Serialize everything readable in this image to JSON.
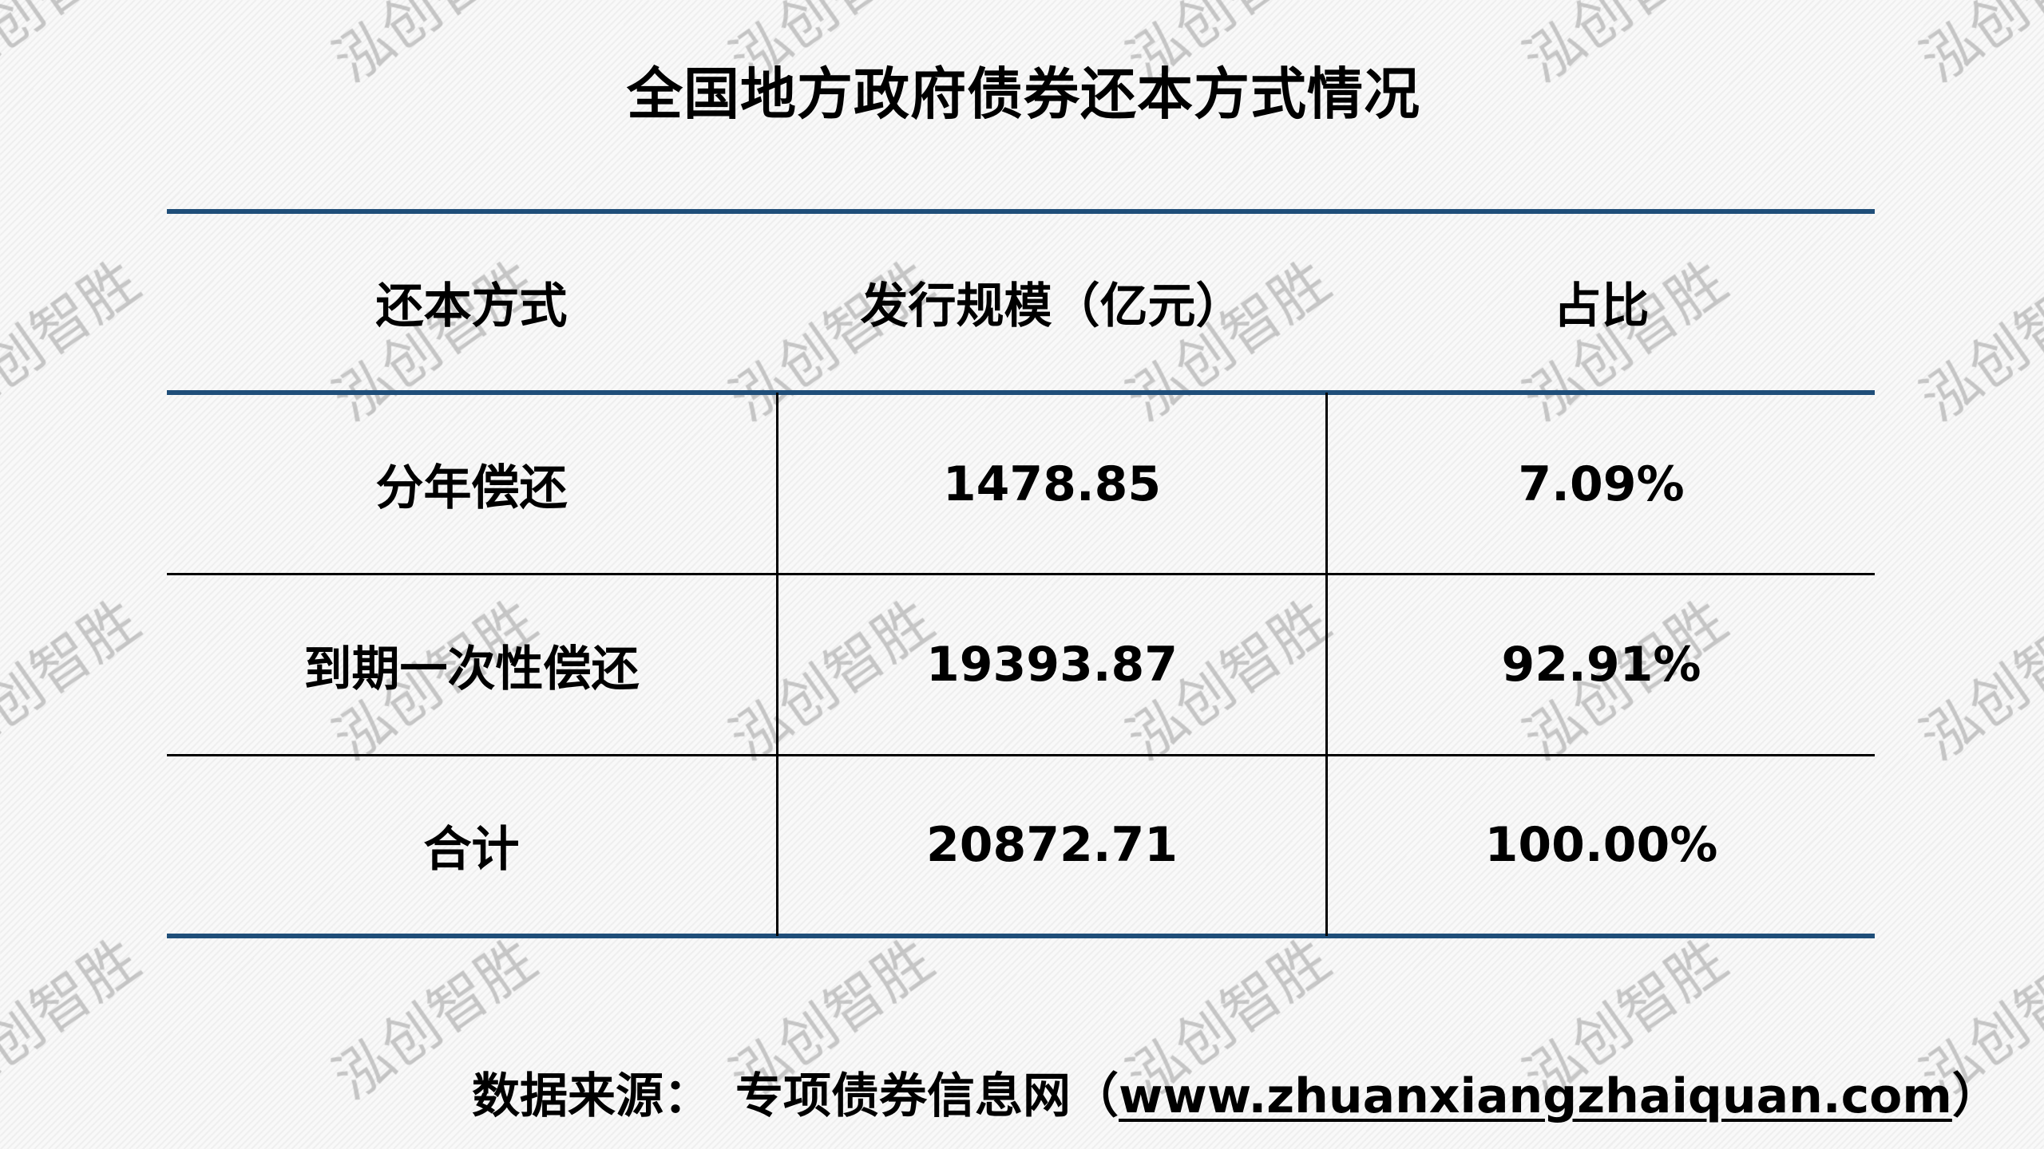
{
  "title": "全国地方政府债券还本方式情况",
  "table": {
    "headers": [
      "还本方式",
      "发行规模（亿元）",
      "占比"
    ],
    "rows": [
      [
        "分年偿还",
        "1478.85",
        "7.09%"
      ],
      [
        "到期一次性偿还",
        "19393.87",
        "92.91%"
      ],
      [
        "合计",
        "20872.71",
        "100.00%"
      ]
    ],
    "rule_color": "#1f4e79"
  },
  "source": {
    "label": "数据来源：",
    "name": "专项债券信息网（",
    "url": "www.zhuanxiangzhaiquan.com",
    "close": "）"
  },
  "watermark": "泓创智胜"
}
